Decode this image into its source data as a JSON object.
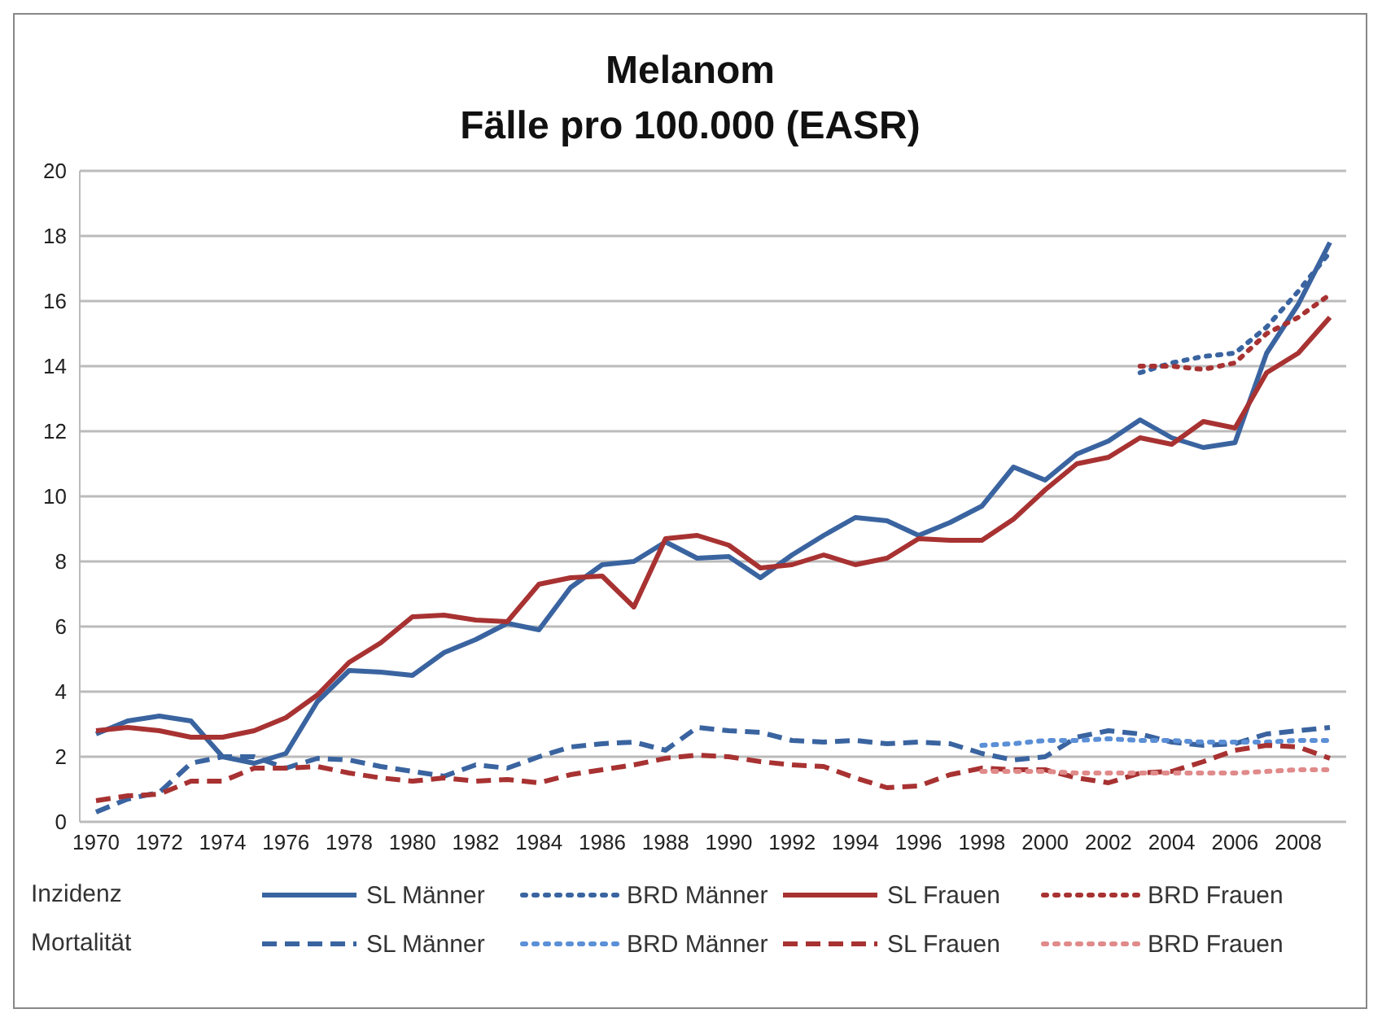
{
  "chart_data": {
    "type": "line",
    "title": "Melanom",
    "subtitle": "Fälle pro 100.000 (EASR)",
    "categories": [
      "1970",
      null,
      "1972",
      null,
      "1974",
      null,
      "1976",
      null,
      "1978",
      null,
      "1980",
      null,
      "1982",
      null,
      "1984",
      null,
      "1986",
      null,
      "1988",
      null,
      "1990",
      null,
      "1992",
      null,
      "1994",
      null,
      "1996",
      null,
      "1998",
      null,
      "2000",
      null,
      "2002",
      null,
      "2004",
      null,
      "2006",
      null,
      "2008",
      null
    ],
    "ylim": [
      0,
      20
    ],
    "yticks": [
      0,
      2,
      4,
      6,
      8,
      10,
      12,
      14,
      16,
      18,
      20
    ],
    "grid": "y",
    "legend": "bottom",
    "marker": "none",
    "annotations": [
      "Inzidenz",
      "Mortalität"
    ],
    "series": [
      {
        "name": "SL Männer",
        "color": "#3a64a0",
        "line_style": "solid",
        "values": [
          2.7,
          3.1,
          3.25,
          3.1,
          2.0,
          1.8,
          2.1,
          3.7,
          4.65,
          4.6,
          4.5,
          5.2,
          5.6,
          6.1,
          5.9,
          7.2,
          7.9,
          8.0,
          8.6,
          8.1,
          8.15,
          7.5,
          8.2,
          8.8,
          9.35,
          9.25,
          8.8,
          9.2,
          9.7,
          10.9,
          10.5,
          11.3,
          11.7,
          12.35,
          11.8,
          11.5,
          11.65,
          14.4,
          15.9,
          17.8
        ]
      },
      {
        "name": "BRD Männer",
        "color": "#3a64a0",
        "line_style": "dotted",
        "values": [
          null,
          null,
          null,
          null,
          null,
          null,
          null,
          null,
          null,
          null,
          null,
          null,
          null,
          null,
          null,
          null,
          null,
          null,
          null,
          null,
          null,
          null,
          null,
          null,
          null,
          null,
          null,
          null,
          null,
          null,
          null,
          null,
          null,
          13.8,
          14.1,
          14.3,
          14.4,
          15.2,
          16.3,
          17.5
        ]
      },
      {
        "name": "SL Frauen",
        "color": "#a83232",
        "line_style": "solid",
        "values": [
          2.8,
          2.9,
          2.8,
          2.6,
          2.6,
          2.8,
          3.2,
          3.9,
          4.9,
          5.5,
          6.3,
          6.35,
          6.2,
          6.15,
          7.3,
          7.5,
          7.55,
          6.6,
          8.7,
          8.8,
          8.5,
          7.8,
          7.9,
          8.2,
          7.9,
          8.1,
          8.7,
          8.65,
          8.65,
          9.3,
          10.2,
          11.0,
          11.2,
          11.8,
          11.6,
          12.3,
          12.1,
          13.8,
          14.4,
          15.5
        ]
      },
      {
        "name": "BRD Frauen",
        "color": "#a83232",
        "line_style": "dotted",
        "values": [
          null,
          null,
          null,
          null,
          null,
          null,
          null,
          null,
          null,
          null,
          null,
          null,
          null,
          null,
          null,
          null,
          null,
          null,
          null,
          null,
          null,
          null,
          null,
          null,
          null,
          null,
          null,
          null,
          null,
          null,
          null,
          null,
          null,
          14.0,
          14.0,
          13.9,
          14.1,
          15.0,
          15.5,
          16.2
        ]
      },
      {
        "name": "SL Männer",
        "color": "#3a64a0",
        "line_style": "dashed",
        "values": [
          0.3,
          0.7,
          0.9,
          1.8,
          2.0,
          2.0,
          1.65,
          1.95,
          1.9,
          1.7,
          1.55,
          1.4,
          1.75,
          1.65,
          2.0,
          2.3,
          2.4,
          2.45,
          2.2,
          2.9,
          2.8,
          2.75,
          2.5,
          2.45,
          2.5,
          2.4,
          2.45,
          2.4,
          2.1,
          1.9,
          2.0,
          2.6,
          2.8,
          2.7,
          2.45,
          2.35,
          2.4,
          2.7,
          2.8,
          2.9
        ]
      },
      {
        "name": "BRD Männer",
        "color": "#5b8fd6",
        "line_style": "dotted",
        "values": [
          null,
          null,
          null,
          null,
          null,
          null,
          null,
          null,
          null,
          null,
          null,
          null,
          null,
          null,
          null,
          null,
          null,
          null,
          null,
          null,
          null,
          null,
          null,
          null,
          null,
          null,
          null,
          null,
          2.35,
          2.4,
          2.5,
          2.5,
          2.55,
          2.5,
          2.5,
          2.45,
          2.45,
          2.45,
          2.5,
          2.5
        ]
      },
      {
        "name": "SL Frauen",
        "color": "#a83232",
        "line_style": "dashed",
        "values": [
          0.65,
          0.8,
          0.85,
          1.25,
          1.25,
          1.65,
          1.65,
          1.7,
          1.5,
          1.35,
          1.25,
          1.35,
          1.25,
          1.3,
          1.2,
          1.45,
          1.6,
          1.75,
          1.95,
          2.05,
          2.0,
          1.85,
          1.75,
          1.7,
          1.35,
          1.05,
          1.1,
          1.45,
          1.65,
          1.6,
          1.6,
          1.35,
          1.2,
          1.5,
          1.55,
          1.85,
          2.2,
          2.35,
          2.3,
          1.95
        ]
      },
      {
        "name": "BRD Frauen",
        "color": "#e08a8a",
        "line_style": "dotted",
        "values": [
          null,
          null,
          null,
          null,
          null,
          null,
          null,
          null,
          null,
          null,
          null,
          null,
          null,
          null,
          null,
          null,
          null,
          null,
          null,
          null,
          null,
          null,
          null,
          null,
          null,
          null,
          null,
          null,
          1.55,
          1.55,
          1.55,
          1.5,
          1.5,
          1.5,
          1.5,
          1.5,
          1.5,
          1.55,
          1.6,
          1.6
        ]
      }
    ]
  }
}
